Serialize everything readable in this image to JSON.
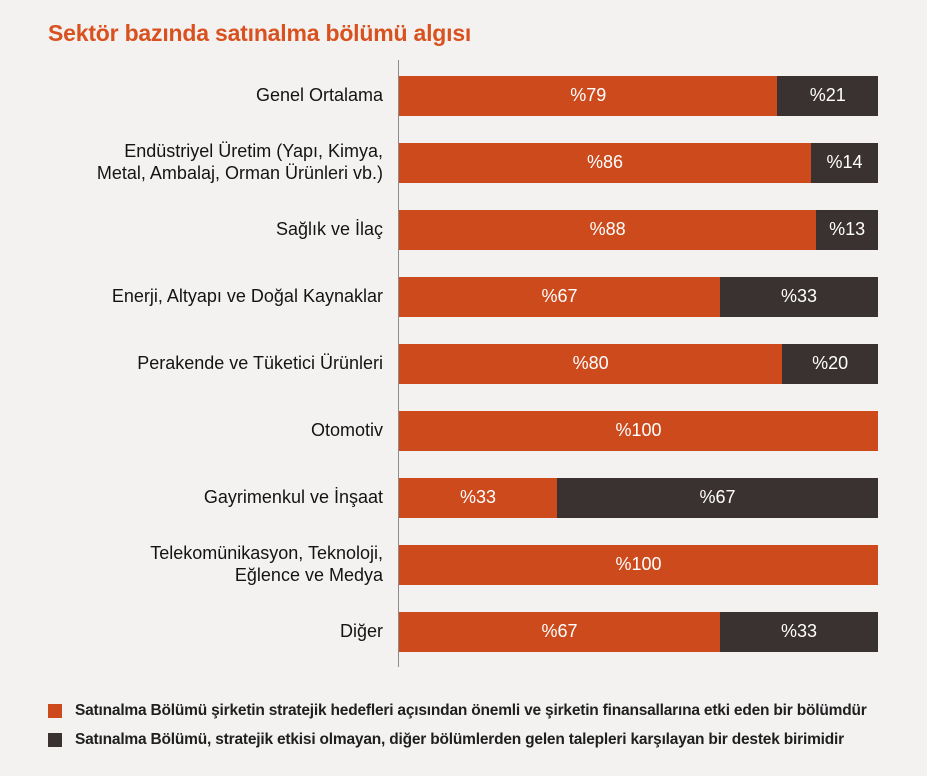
{
  "title": "Sektör bazında satınalma bölümü algısı",
  "colors": {
    "title": "#d8511f",
    "primary": "#cc4a1c",
    "secondary": "#3a3230",
    "background": "#f3f2f0",
    "axis": "#8c8c8c",
    "category_text": "#141414",
    "bar_value_text": "#ffffff"
  },
  "chart_data": {
    "type": "bar",
    "orientation": "horizontal",
    "stacked": true,
    "unit": "percent",
    "xlim": [
      0,
      100
    ],
    "grid": false,
    "legend_position": "bottom",
    "categories": [
      "Genel Ortalama",
      "Endüstriyel Üretim (Yapı, Kimya,\nMetal, Ambalaj, Orman Ürünleri vb.)",
      "Sağlık ve İlaç",
      "Enerji, Altyapı ve Doğal Kaynaklar",
      "Perakende ve Tüketici Ürünleri",
      "Otomotiv",
      "Gayrimenkul ve İnşaat",
      "Telekomünikasyon, Teknoloji,\nEğlence ve Medya",
      "Diğer"
    ],
    "series": [
      {
        "name": "Satınalma Bölümü şirketin stratejik hedefleri açısından önemli ve şirketin finansallarına etki eden bir bölümdür",
        "color": "#cc4a1c",
        "values": [
          79,
          86,
          88,
          67,
          80,
          100,
          33,
          100,
          67
        ],
        "labels": [
          "%79",
          "%86",
          "%88",
          "%67",
          "%80",
          "%100",
          "%33",
          "%100",
          "%67"
        ]
      },
      {
        "name": "Satınalma Bölümü, stratejik etkisi olmayan, diğer bölümlerden gelen talepleri karşılayan bir destek birimidir",
        "color": "#3a3230",
        "values": [
          21,
          14,
          13,
          33,
          20,
          0,
          67,
          0,
          33
        ],
        "labels": [
          "%21",
          "%14",
          "%13",
          "%33",
          "%20",
          "",
          "%67",
          "",
          "%33"
        ]
      }
    ]
  },
  "legend": {
    "items": [
      {
        "swatch_color": "#cc4a1c",
        "label": "Satınalma Bölümü şirketin stratejik hedefleri açısından önemli ve şirketin finansallarına etki eden bir bölümdür"
      },
      {
        "swatch_color": "#3a3230",
        "label": "Satınalma Bölümü, stratejik etkisi olmayan, diğer bölümlerden gelen talepleri karşılayan bir destek birimidir"
      }
    ]
  }
}
